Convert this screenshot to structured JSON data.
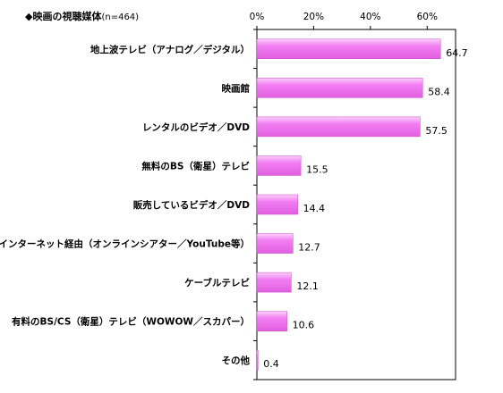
{
  "chart_data": {
    "type": "bar",
    "orientation": "horizontal",
    "title": "◆映画の視聴媒体",
    "subtitle": "(n=464)",
    "categories": [
      "地上波テレビ（アナログ／デジタル）",
      "映画館",
      "レンタルのビデオ／DVD",
      "無料のBS（衛星）テレビ",
      "販売しているビデオ／DVD",
      "インターネット経由（オンラインシアター／YouTube等）",
      "ケーブルテレビ",
      "有料のBS/CS（衛星）テレビ（WOWOW／スカパー）",
      "その他"
    ],
    "values": [
      64.7,
      58.4,
      57.5,
      15.5,
      14.4,
      12.7,
      12.1,
      10.6,
      0.4
    ],
    "value_labels": [
      "64.7",
      "58.4",
      "57.5",
      "15.5",
      "14.4",
      "12.7",
      "12.1",
      "10.6",
      "0.4"
    ],
    "xlim": [
      0,
      70
    ],
    "xticks": [
      0,
      20,
      40,
      60
    ],
    "xtick_labels": [
      "0%",
      "20%",
      "40%",
      "60%"
    ],
    "axis_position": "top",
    "grid": false,
    "bar_color": "#f27ef2"
  }
}
